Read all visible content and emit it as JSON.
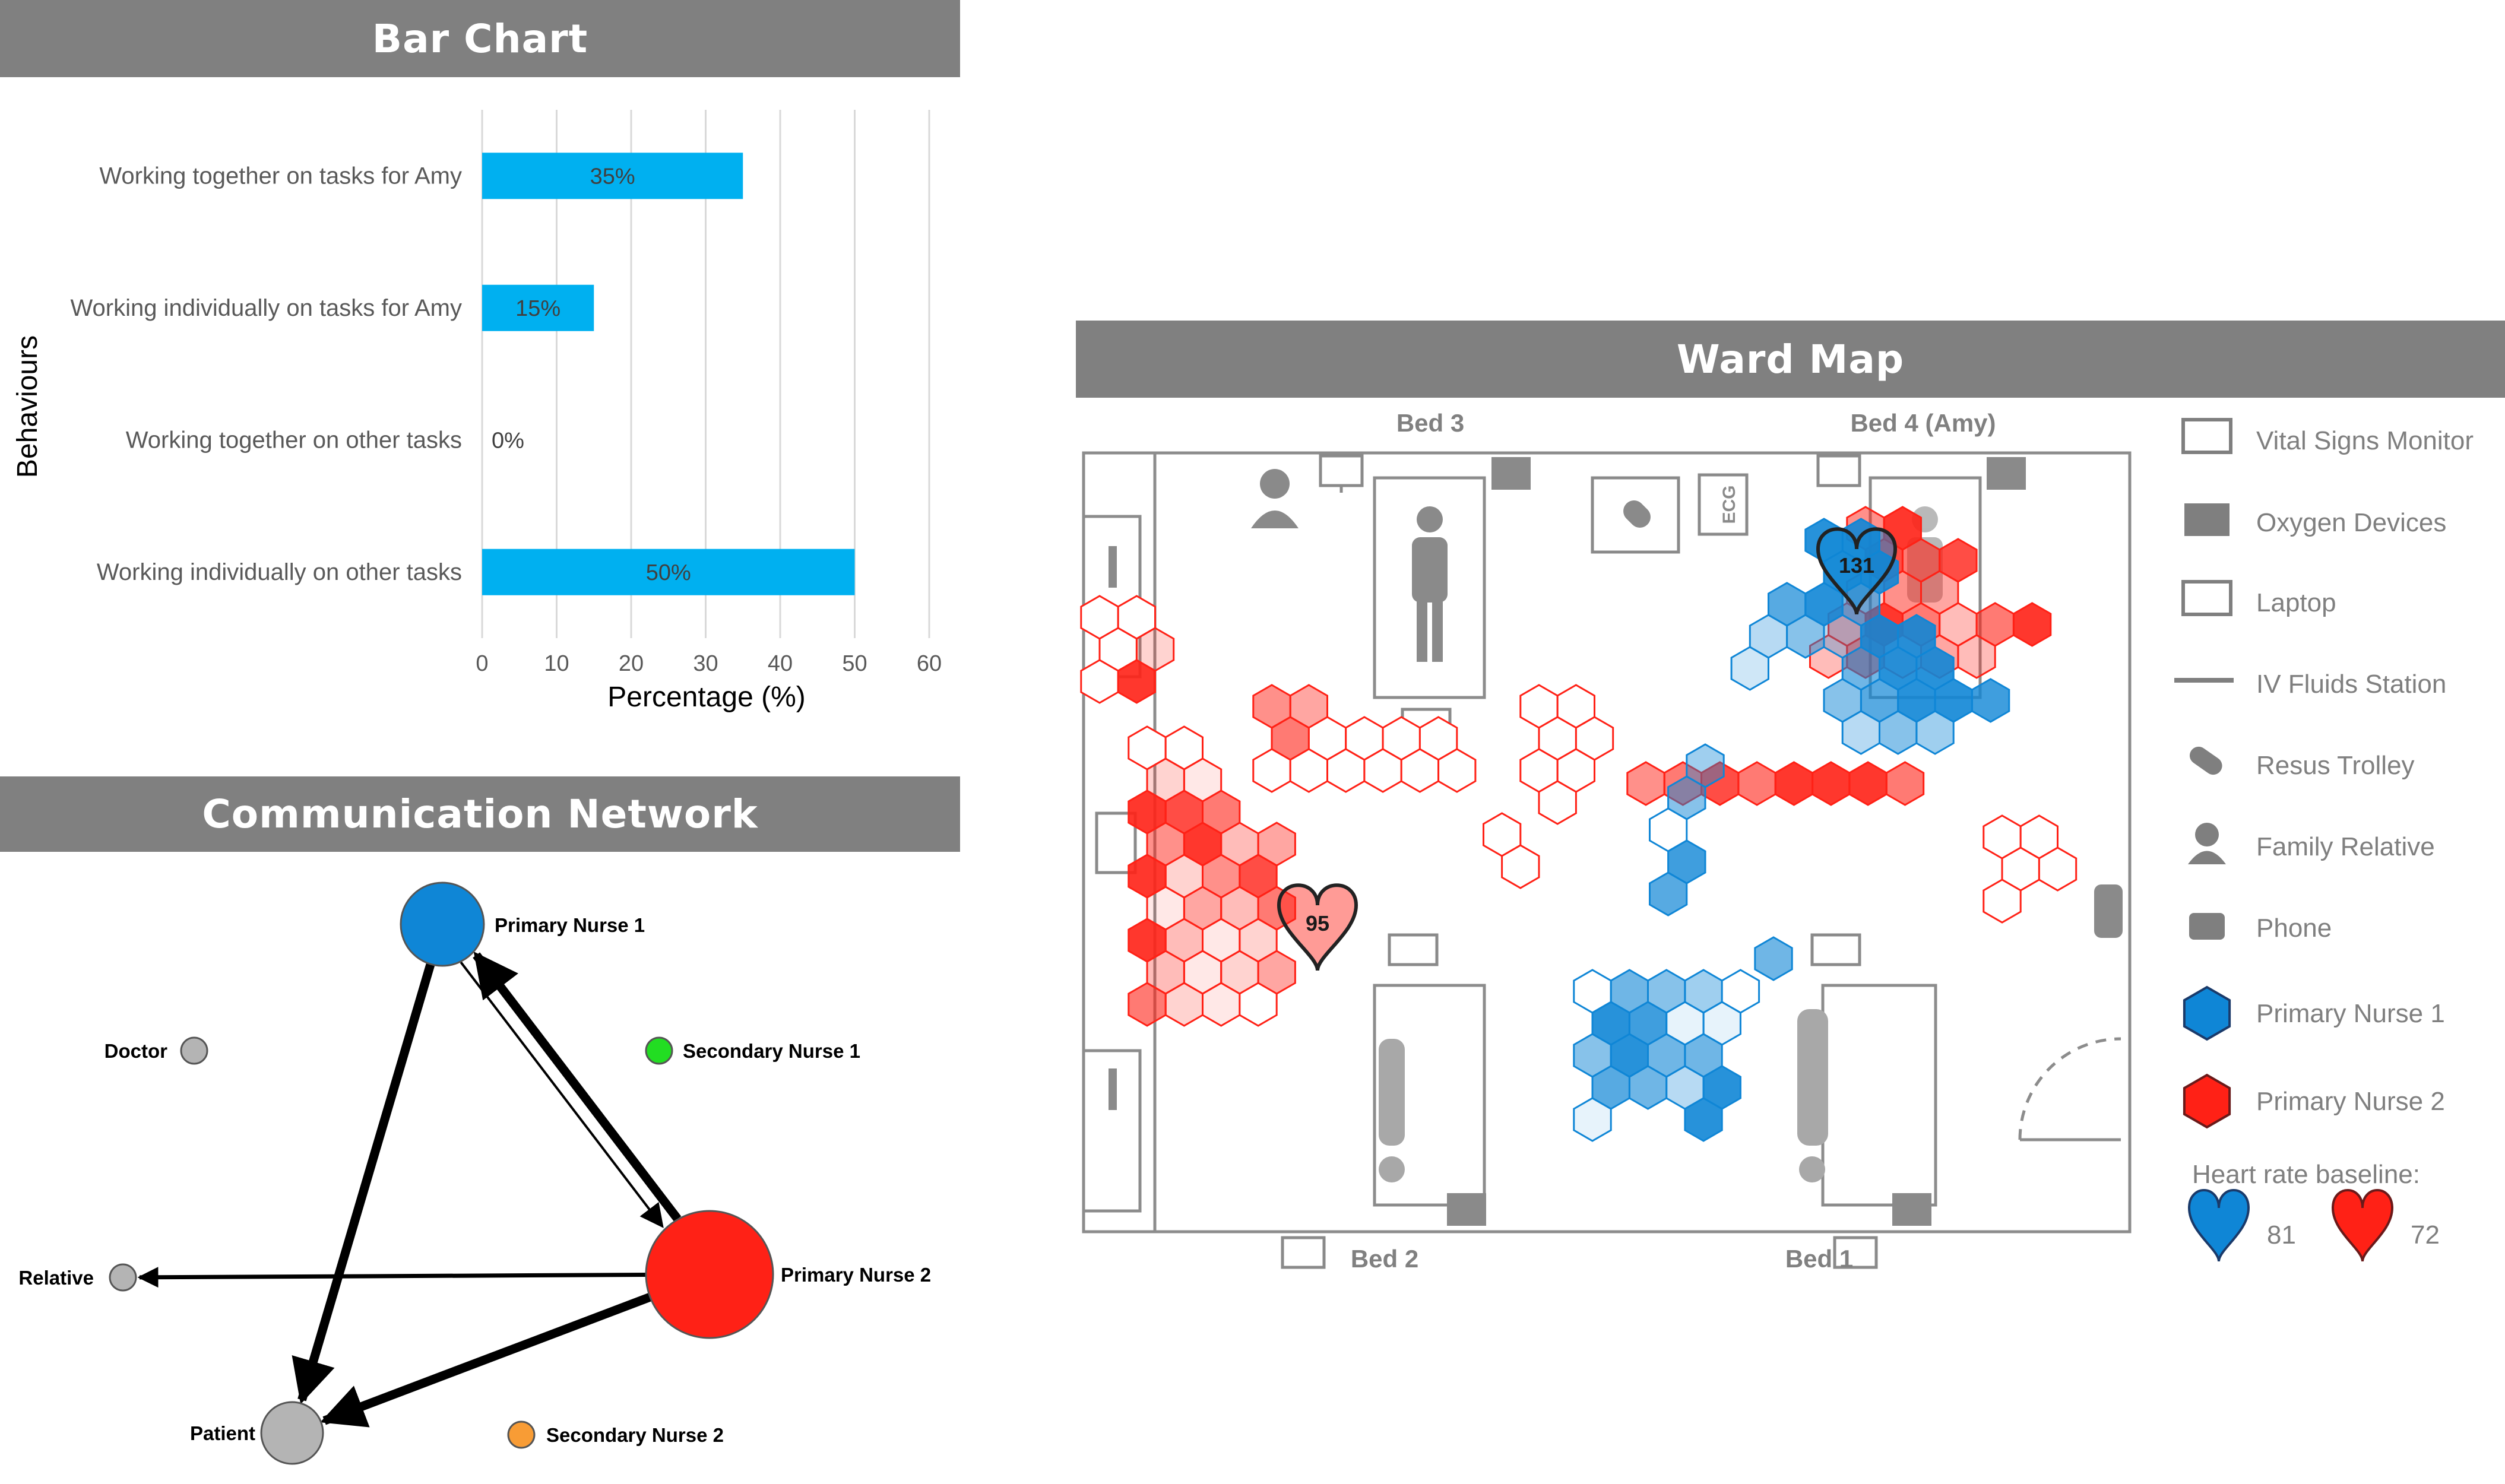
{
  "panels": {
    "bar_title": "Bar Chart",
    "network_title": "Communication Network",
    "ward_title": "Ward Map"
  },
  "chart_data": [
    {
      "type": "bar",
      "orientation": "horizontal",
      "title": "Bar Chart",
      "xlabel": "Percentage (%)",
      "ylabel": "Behaviours",
      "categories": [
        "Working together on tasks for Amy",
        "Working individually on tasks for Amy",
        "Working together on other tasks",
        "Working individually on other tasks"
      ],
      "values": [
        35,
        15,
        0,
        50
      ],
      "data_labels": [
        "35%",
        "15%",
        "0%",
        "50%"
      ],
      "xlim": [
        0,
        60
      ],
      "xticks": [
        0,
        10,
        20,
        30,
        40,
        50,
        60
      ],
      "grid": "vertical",
      "bar_color": "#00b0f0"
    }
  ],
  "network": {
    "title": "Communication Network",
    "nodes": [
      {
        "id": "pn1",
        "label": "Primary Nurse 1",
        "color": "#0f86d6",
        "size": "medium"
      },
      {
        "id": "pn2",
        "label": "Primary Nurse 2",
        "color": "#ff2116",
        "size": "large"
      },
      {
        "id": "patient",
        "label": "Patient",
        "color": "#b4b4b4",
        "size": "medium-small"
      },
      {
        "id": "doctor",
        "label": "Doctor",
        "color": "#b4b4b4",
        "size": "small"
      },
      {
        "id": "relative",
        "label": "Relative",
        "color": "#b4b4b4",
        "size": "small"
      },
      {
        "id": "sn1",
        "label": "Secondary Nurse 1",
        "color": "#22dd22",
        "size": "small"
      },
      {
        "id": "sn2",
        "label": "Secondary Nurse 2",
        "color": "#f89c35",
        "size": "small"
      }
    ],
    "edges": [
      {
        "from": "pn1",
        "to": "pn2",
        "weight": "thin"
      },
      {
        "from": "pn2",
        "to": "pn1",
        "weight": "thick"
      },
      {
        "from": "pn1",
        "to": "patient",
        "weight": "thick"
      },
      {
        "from": "pn2",
        "to": "patient",
        "weight": "thick"
      },
      {
        "from": "pn2",
        "to": "relative",
        "weight": "medium"
      }
    ]
  },
  "ward_map": {
    "title": "Ward Map",
    "beds": [
      "Bed 3",
      "Bed 4 (Amy)",
      "Bed 2",
      "Bed 1"
    ],
    "icon_labels": {
      "ecg": "ECG"
    },
    "heart_markers": [
      {
        "value": "131",
        "color": "#0f86d6",
        "location": "Bed 4 (Amy)"
      },
      {
        "value": "95",
        "color": "#ff2116",
        "location": "Bed 2"
      }
    ],
    "legend": [
      {
        "label": "Vital Signs Monitor",
        "icon": "vital-signs-monitor-icon"
      },
      {
        "label": "Oxygen Devices",
        "icon": "oxygen-device-icon"
      },
      {
        "label": "Laptop",
        "icon": "laptop-icon"
      },
      {
        "label": "IV Fluids Station",
        "icon": "iv-fluids-icon"
      },
      {
        "label": "Resus Trolley",
        "icon": "pill-icon"
      },
      {
        "label": "Family Relative",
        "icon": "family-relative-icon"
      },
      {
        "label": "Phone",
        "icon": "phone-icon"
      },
      {
        "label": "Primary Nurse 1",
        "icon": "blue-hexagon-icon",
        "color": "#0f86d6"
      },
      {
        "label": "Primary Nurse 2",
        "icon": "red-hexagon-icon",
        "color": "#ff2116"
      }
    ],
    "baseline_title": "Heart rate baseline:",
    "baselines": [
      {
        "value": "81",
        "color": "#0f86d6"
      },
      {
        "value": "72",
        "color": "#ff2116"
      }
    ]
  }
}
